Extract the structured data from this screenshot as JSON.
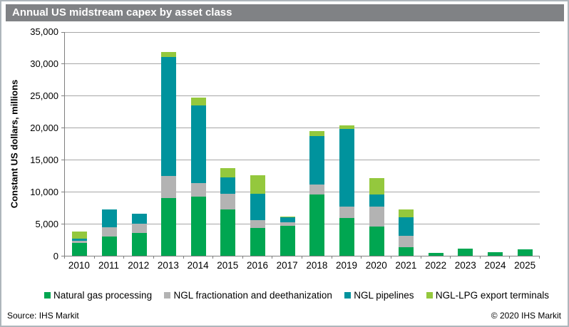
{
  "title": "Annual US midstream capex by asset class",
  "footer": {
    "source": "Source: IHS Markit",
    "copyright": "© 2020 IHS Markit"
  },
  "colors": {
    "title_bg": "#808285",
    "title_text": "#ffffff",
    "gridline": "#a6a6a6",
    "axis": "#7f7f7f",
    "outer_border": "#aeb6bc"
  },
  "chart_data": {
    "type": "bar",
    "stacked": true,
    "title": "Annual US midstream capex by asset class",
    "xlabel": "",
    "ylabel": "Constant US dollars, millions",
    "ylim": [
      0,
      35000
    ],
    "ytick_step": 5000,
    "ytick_labels": [
      "0",
      "5,000",
      "10,000",
      "15,000",
      "20,000",
      "25,000",
      "30,000",
      "35,000"
    ],
    "grid": true,
    "legend_position": "bottom",
    "categories": [
      "2010",
      "2011",
      "2012",
      "2013",
      "2014",
      "2015",
      "2016",
      "2017",
      "2018",
      "2019",
      "2020",
      "2021",
      "2022",
      "2023",
      "2024",
      "2025"
    ],
    "series": [
      {
        "name": "Natural gas processing",
        "color": "#00a651",
        "values": [
          2000,
          3000,
          3600,
          9000,
          9200,
          7200,
          4300,
          4700,
          9600,
          5900,
          4600,
          1300,
          450,
          1100,
          500,
          1000
        ]
      },
      {
        "name": "NGL fractionation and deethanization",
        "color": "#b3b3b3",
        "values": [
          350,
          1400,
          1450,
          3400,
          2100,
          2400,
          1200,
          500,
          1600,
          1800,
          3100,
          1800,
          0,
          0,
          0,
          0
        ]
      },
      {
        "name": "NGL pipelines",
        "color": "#00939d",
        "values": [
          300,
          2800,
          1550,
          18500,
          12100,
          2600,
          4100,
          800,
          7600,
          12100,
          1900,
          2900,
          0,
          0,
          0,
          0
        ]
      },
      {
        "name": "NGL-LPG export terminals",
        "color": "#94c83d",
        "values": [
          1150,
          0,
          0,
          800,
          1200,
          1400,
          2900,
          100,
          800,
          600,
          2500,
          1200,
          0,
          0,
          0,
          0
        ]
      }
    ]
  }
}
